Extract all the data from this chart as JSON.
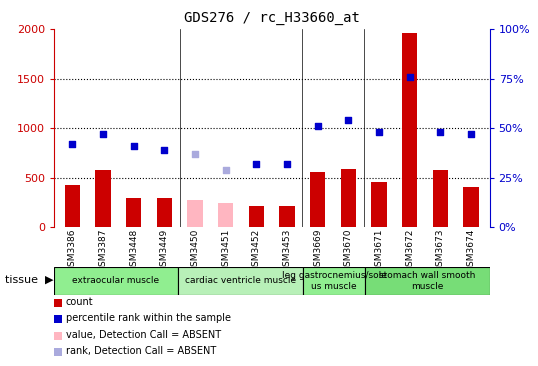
{
  "title": "GDS276 / rc_H33660_at",
  "samples": [
    "GSM3386",
    "GSM3387",
    "GSM3448",
    "GSM3449",
    "GSM3450",
    "GSM3451",
    "GSM3452",
    "GSM3453",
    "GSM3669",
    "GSM3670",
    "GSM3671",
    "GSM3672",
    "GSM3673",
    "GSM3674"
  ],
  "count_values": [
    420,
    580,
    290,
    290,
    null,
    null,
    215,
    215,
    560,
    590,
    450,
    1960,
    580,
    400
  ],
  "count_absent": [
    null,
    null,
    null,
    null,
    270,
    240,
    null,
    null,
    null,
    null,
    null,
    null,
    null,
    null
  ],
  "rank_values_raw": [
    42,
    47,
    41,
    39,
    null,
    null,
    32,
    32,
    51,
    54,
    48,
    76,
    48,
    47
  ],
  "rank_absent_raw": [
    null,
    null,
    null,
    null,
    37,
    29,
    null,
    null,
    null,
    null,
    null,
    null,
    null,
    null
  ],
  "ylim_left": [
    0,
    2000
  ],
  "ylim_right": [
    0,
    100
  ],
  "yticks_left": [
    0,
    500,
    1000,
    1500,
    2000
  ],
  "yticks_right": [
    0,
    25,
    50,
    75,
    100
  ],
  "grid_values": [
    500,
    1000,
    1500
  ],
  "group_borders": [
    0,
    4,
    8,
    10,
    14
  ],
  "group_labels": [
    "extraocular muscle",
    "cardiac ventricle muscle",
    "leg gastrocnemius/sole\nus muscle",
    "stomach wall smooth\nmuscle"
  ],
  "group_colors": [
    "#90EE90",
    "#b8f0b8",
    "#90EE90",
    "#77DD77"
  ],
  "bar_color_present": "#CC0000",
  "bar_color_absent": "#FFB6C1",
  "dot_color_present": "#0000CC",
  "dot_color_absent": "#AAAADD",
  "axis_left_color": "#CC0000",
  "axis_right_color": "#0000CC",
  "plot_bg_color": "#FFFFFF",
  "xtick_bg_color": "#CCCCCC",
  "legend_items": [
    {
      "label": "count",
      "color": "#CC0000"
    },
    {
      "label": "percentile rank within the sample",
      "color": "#0000CC"
    },
    {
      "label": "value, Detection Call = ABSENT",
      "color": "#FFB6C1"
    },
    {
      "label": "rank, Detection Call = ABSENT",
      "color": "#AAAADD"
    }
  ]
}
